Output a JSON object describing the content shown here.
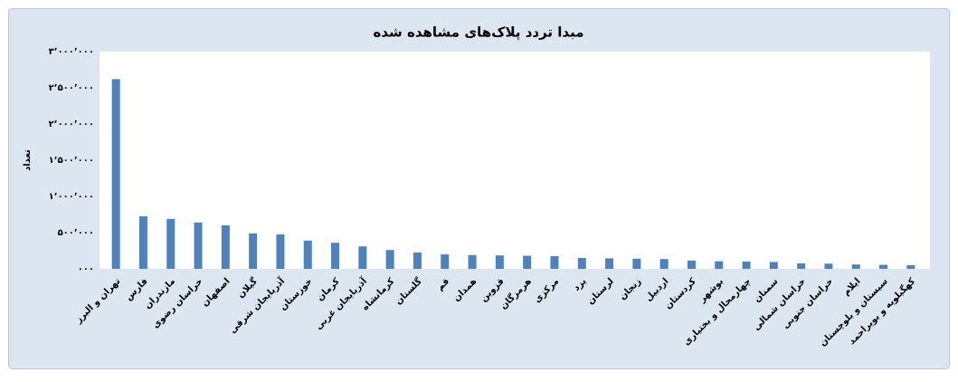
{
  "chart_data": {
    "type": "bar",
    "title": "مبدا تردد پلاک‌های مشاهده شده",
    "y_label": "تعداد",
    "categories": [
      "تهران و البرز",
      "فارس",
      "مازندران",
      "خراسان رضوی",
      "اصفهان",
      "گیلان",
      "آذربایجان شرقی",
      "خوزستان",
      "کرمان",
      "آذربایجان غربی",
      "کرمانشاه",
      "گلستان",
      "قم",
      "همدان",
      "قزوین",
      "هرمزگان",
      "مرکزی",
      "یزد",
      "لرستان",
      "زنجان",
      "اردبیل",
      "کردستان",
      "بوشهر",
      "چهارمحال و بختیاری",
      "سمنان",
      "خراسان شمالی",
      "خراسان جنوبی",
      "ایلام",
      "سیستان و بلوچستان",
      "کهگیلویه و بویراحمد"
    ],
    "values": [
      2620000,
      725000,
      690000,
      640000,
      600000,
      490000,
      475000,
      390000,
      360000,
      310000,
      260000,
      225000,
      200000,
      190000,
      185000,
      180000,
      175000,
      150000,
      145000,
      140000,
      135000,
      115000,
      105000,
      100000,
      95000,
      75000,
      72000,
      60000,
      55000,
      50000
    ],
    "color": "#4f81bd",
    "ylim": [
      0,
      3000000
    ],
    "yticks": [
      {
        "value": 0,
        "label": "۰۰۰"
      },
      {
        "value": 500000,
        "label": "۵۰۰٬۰۰۰"
      },
      {
        "value": 1000000,
        "label": "۱٬۰۰۰٬۰۰۰"
      },
      {
        "value": 1500000,
        "label": "۱٬۵۰۰٬۰۰۰"
      },
      {
        "value": 2000000,
        "label": "۲٬۰۰۰٬۰۰۰"
      },
      {
        "value": 2500000,
        "label": "۲٬۵۰۰٬۰۰۰"
      },
      {
        "value": 3000000,
        "label": "۳٬۰۰۰٬۰۰۰"
      }
    ],
    "grid": false
  }
}
